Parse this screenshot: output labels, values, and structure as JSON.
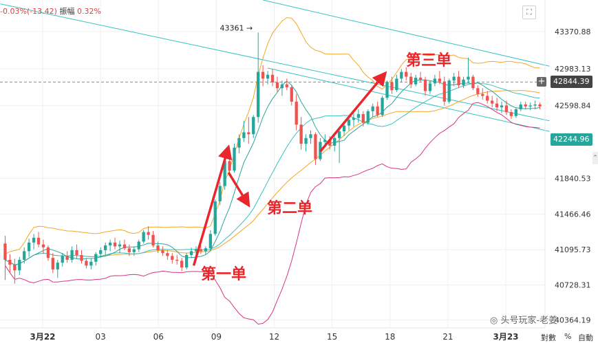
{
  "header": {
    "change_text": "-0.03%(-13.42)",
    "amplitude_label": "振幅",
    "amplitude_value": "0.32%"
  },
  "annotations": {
    "first": "第一单",
    "second": "第二单",
    "third": "第三单"
  },
  "watermark": "头号玩家-老姜",
  "bottom_controls": {
    "log": "對數",
    "percent": "%",
    "auto": "自動"
  },
  "colors": {
    "up": "#26a69a",
    "down": "#ef5350",
    "arrow": "#e8262b",
    "ma_fast": "#26a69a",
    "bb_upper": "#f5a623",
    "bb_lower": "#d63384",
    "channel": "#36c2c2",
    "price_box": "#444444",
    "level_box": "#26a69a"
  },
  "chart_data": {
    "type": "candlestick",
    "y_ticks": [
      43370.88,
      42983.13,
      42598.84,
      41840.53,
      41466.46,
      41095.73,
      40728.31,
      40364.19
    ],
    "x_ticks": [
      "3月22",
      "03",
      "06",
      "09",
      "12",
      "15",
      "18",
      "21",
      "3月23"
    ],
    "ylim": [
      40280,
      43700
    ],
    "current_price": 42844.39,
    "level_price": 42244.96,
    "high_marker": 43361,
    "high_marker_label": "43361",
    "candles": [
      [
        41160,
        41240,
        40780,
        40990
      ],
      [
        40990,
        41050,
        40850,
        40940
      ],
      [
        40940,
        41000,
        40740,
        40880
      ],
      [
        40880,
        41020,
        40830,
        40990
      ],
      [
        40990,
        41120,
        40950,
        41080
      ],
      [
        41080,
        41210,
        41020,
        41170
      ],
      [
        41170,
        41260,
        41100,
        41220
      ],
      [
        41220,
        41280,
        41120,
        41150
      ],
      [
        41150,
        41200,
        41050,
        41120
      ],
      [
        41120,
        41140,
        40980,
        41010
      ],
      [
        41010,
        41060,
        40850,
        40890
      ],
      [
        40890,
        40990,
        40800,
        40960
      ],
      [
        40960,
        41060,
        40920,
        41030
      ],
      [
        41030,
        41080,
        40960,
        40990
      ],
      [
        40990,
        41130,
        40960,
        41090
      ],
      [
        41090,
        41150,
        41000,
        41040
      ],
      [
        41040,
        41090,
        40950,
        40980
      ],
      [
        40980,
        41010,
        40900,
        40930
      ],
      [
        40930,
        41000,
        40890,
        40970
      ],
      [
        40970,
        41070,
        40930,
        41050
      ],
      [
        41050,
        41120,
        41010,
        41090
      ],
      [
        41090,
        41170,
        41040,
        41140
      ],
      [
        41140,
        41200,
        41080,
        41170
      ],
      [
        41170,
        41220,
        41100,
        41130
      ],
      [
        41130,
        41190,
        41060,
        41150
      ],
      [
        41150,
        41200,
        41090,
        41110
      ],
      [
        41110,
        41150,
        41030,
        41070
      ],
      [
        41070,
        41130,
        41030,
        41100
      ],
      [
        41100,
        41200,
        41070,
        41180
      ],
      [
        41180,
        41300,
        41160,
        41280
      ],
      [
        41280,
        41340,
        41200,
        41250
      ],
      [
        41250,
        41290,
        41120,
        41140
      ],
      [
        41140,
        41180,
        41060,
        41090
      ],
      [
        41090,
        41130,
        41030,
        41060
      ],
      [
        41060,
        41090,
        40990,
        41030
      ],
      [
        41030,
        41060,
        40950,
        40990
      ],
      [
        40990,
        41040,
        40940,
        40980
      ],
      [
        40980,
        41010,
        40870,
        40910
      ],
      [
        40910,
        41060,
        40890,
        41040
      ],
      [
        41040,
        41120,
        41010,
        41080
      ],
      [
        41080,
        41130,
        41040,
        41100
      ],
      [
        41100,
        41140,
        41050,
        41080
      ],
      [
        41080,
        41130,
        41040,
        41110
      ],
      [
        41110,
        41300,
        41090,
        41260
      ],
      [
        41260,
        41620,
        41240,
        41600
      ],
      [
        41600,
        41800,
        41560,
        41760
      ],
      [
        41760,
        42060,
        41720,
        42020
      ],
      [
        42020,
        42060,
        41880,
        41920
      ],
      [
        41920,
        42200,
        41900,
        42160
      ],
      [
        42160,
        42300,
        42100,
        42260
      ],
      [
        42260,
        42440,
        42220,
        42320
      ],
      [
        42320,
        42480,
        42200,
        42300
      ],
      [
        42300,
        42500,
        42260,
        42480
      ],
      [
        42480,
        43361,
        42420,
        42950
      ],
      [
        42950,
        43020,
        42800,
        42880
      ],
      [
        42880,
        42960,
        42820,
        42920
      ],
      [
        42920,
        42980,
        42800,
        42840
      ],
      [
        42840,
        42900,
        42740,
        42780
      ],
      [
        42780,
        42860,
        42700,
        42820
      ],
      [
        42820,
        42880,
        42760,
        42790
      ],
      [
        42790,
        42810,
        42600,
        42640
      ],
      [
        42640,
        42720,
        42340,
        42400
      ],
      [
        42400,
        42480,
        42140,
        42200
      ],
      [
        42200,
        42300,
        42120,
        42260
      ],
      [
        42260,
        42340,
        42200,
        42300
      ],
      [
        42300,
        42320,
        41980,
        42040
      ],
      [
        42040,
        42260,
        42020,
        42220
      ],
      [
        42220,
        42300,
        42160,
        42240
      ],
      [
        42240,
        42280,
        42140,
        42180
      ],
      [
        42180,
        42280,
        42120,
        42260
      ],
      [
        42260,
        42380,
        42000,
        42330
      ],
      [
        42330,
        42420,
        42280,
        42390
      ],
      [
        42390,
        42480,
        42340,
        42450
      ],
      [
        42450,
        42520,
        42380,
        42470
      ],
      [
        42470,
        42560,
        42420,
        42510
      ],
      [
        42510,
        42540,
        42380,
        42420
      ],
      [
        42420,
        42560,
        42400,
        42540
      ],
      [
        42540,
        42620,
        42480,
        42590
      ],
      [
        42590,
        42640,
        42480,
        42500
      ],
      [
        42500,
        42700,
        42480,
        42680
      ],
      [
        42680,
        42860,
        42660,
        42840
      ],
      [
        42840,
        42900,
        42720,
        42760
      ],
      [
        42760,
        42920,
        42740,
        42880
      ],
      [
        42880,
        42980,
        42840,
        42950
      ],
      [
        42950,
        43000,
        42860,
        42900
      ],
      [
        42900,
        42940,
        42780,
        42820
      ],
      [
        42820,
        42920,
        42800,
        42890
      ],
      [
        42890,
        42950,
        42840,
        42870
      ],
      [
        42870,
        42900,
        42700,
        42750
      ],
      [
        42750,
        42860,
        42720,
        42830
      ],
      [
        42830,
        42920,
        42800,
        42880
      ],
      [
        42880,
        42960,
        42820,
        42850
      ],
      [
        42850,
        42900,
        42600,
        42640
      ],
      [
        42640,
        42880,
        42620,
        42860
      ],
      [
        42860,
        42940,
        42800,
        42900
      ],
      [
        42900,
        42960,
        42780,
        42810
      ],
      [
        42810,
        42900,
        42780,
        42870
      ],
      [
        42870,
        43100,
        42830,
        42900
      ],
      [
        42900,
        42920,
        42760,
        42780
      ],
      [
        42780,
        42810,
        42690,
        42720
      ],
      [
        42720,
        42780,
        42660,
        42700
      ],
      [
        42700,
        42750,
        42620,
        42650
      ],
      [
        42650,
        42700,
        42580,
        42620
      ],
      [
        42620,
        42680,
        42540,
        42580
      ],
      [
        42580,
        42640,
        42520,
        42600
      ],
      [
        42600,
        42650,
        42500,
        42530
      ],
      [
        42530,
        42560,
        42460,
        42490
      ],
      [
        42490,
        42580,
        42470,
        42560
      ],
      [
        42560,
        42640,
        42540,
        42610
      ],
      [
        42610,
        42640,
        42560,
        42590
      ],
      [
        42590,
        42630,
        42550,
        42600
      ],
      [
        42600,
        42650,
        42560,
        42610
      ],
      [
        42610,
        42630,
        42560,
        42590
      ]
    ]
  }
}
